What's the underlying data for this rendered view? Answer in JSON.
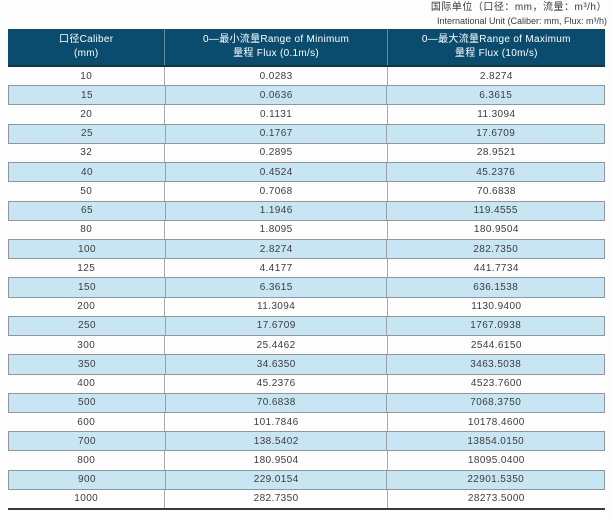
{
  "meta": {
    "unit_note_zh": "国际单位（口径：mm，流量：m³/h）",
    "unit_note_en": "International Unit (Caliber: mm, Flux: m³/h)"
  },
  "colors": {
    "header_bg": "#0a4c6e",
    "header_text": "#ffffff",
    "alt_row_bg": "#c8e5f3",
    "alt_row_border": "#8e979d",
    "grid_line": "#a9a9a9",
    "table_bottom_border": "#3a3a3a",
    "body_text": "#3d3d3d"
  },
  "table": {
    "columns": [
      {
        "line1": "口径Caliber",
        "line2": "(mm)"
      },
      {
        "line1": "0—最小流量Range of Minimum",
        "line2": "量程 Flux (0.1m/s)"
      },
      {
        "line1": "0—最大流量Range of Maximum",
        "line2": "量程 Flux (10m/s)"
      }
    ],
    "rows": [
      [
        "10",
        "0.0283",
        "2.8274"
      ],
      [
        "15",
        "0.0636",
        "6.3615"
      ],
      [
        "20",
        "0.1131",
        "11.3094"
      ],
      [
        "25",
        "0.1767",
        "17.6709"
      ],
      [
        "32",
        "0.2895",
        "28.9521"
      ],
      [
        "40",
        "0.4524",
        "45.2376"
      ],
      [
        "50",
        "0.7068",
        "70.6838"
      ],
      [
        "65",
        "1.1946",
        "119.4555"
      ],
      [
        "80",
        "1.8095",
        "180.9504"
      ],
      [
        "100",
        "2.8274",
        "282.7350"
      ],
      [
        "125",
        "4.4177",
        "441.7734"
      ],
      [
        "150",
        "6.3615",
        "636.1538"
      ],
      [
        "200",
        "11.3094",
        "1130.9400"
      ],
      [
        "250",
        "17.6709",
        "1767.0938"
      ],
      [
        "300",
        "25.4462",
        "2544.6150"
      ],
      [
        "350",
        "34.6350",
        "3463.5038"
      ],
      [
        "400",
        "45.2376",
        "4523.7600"
      ],
      [
        "500",
        "70.6838",
        "7068.3750"
      ],
      [
        "600",
        "101.7846",
        "10178.4600"
      ],
      [
        "700",
        "138.5402",
        "13854.0150"
      ],
      [
        "800",
        "180.9504",
        "18095.0400"
      ],
      [
        "900",
        "229.0154",
        "22901.5350"
      ],
      [
        "1000",
        "282.7350",
        "28273.5000"
      ]
    ]
  }
}
